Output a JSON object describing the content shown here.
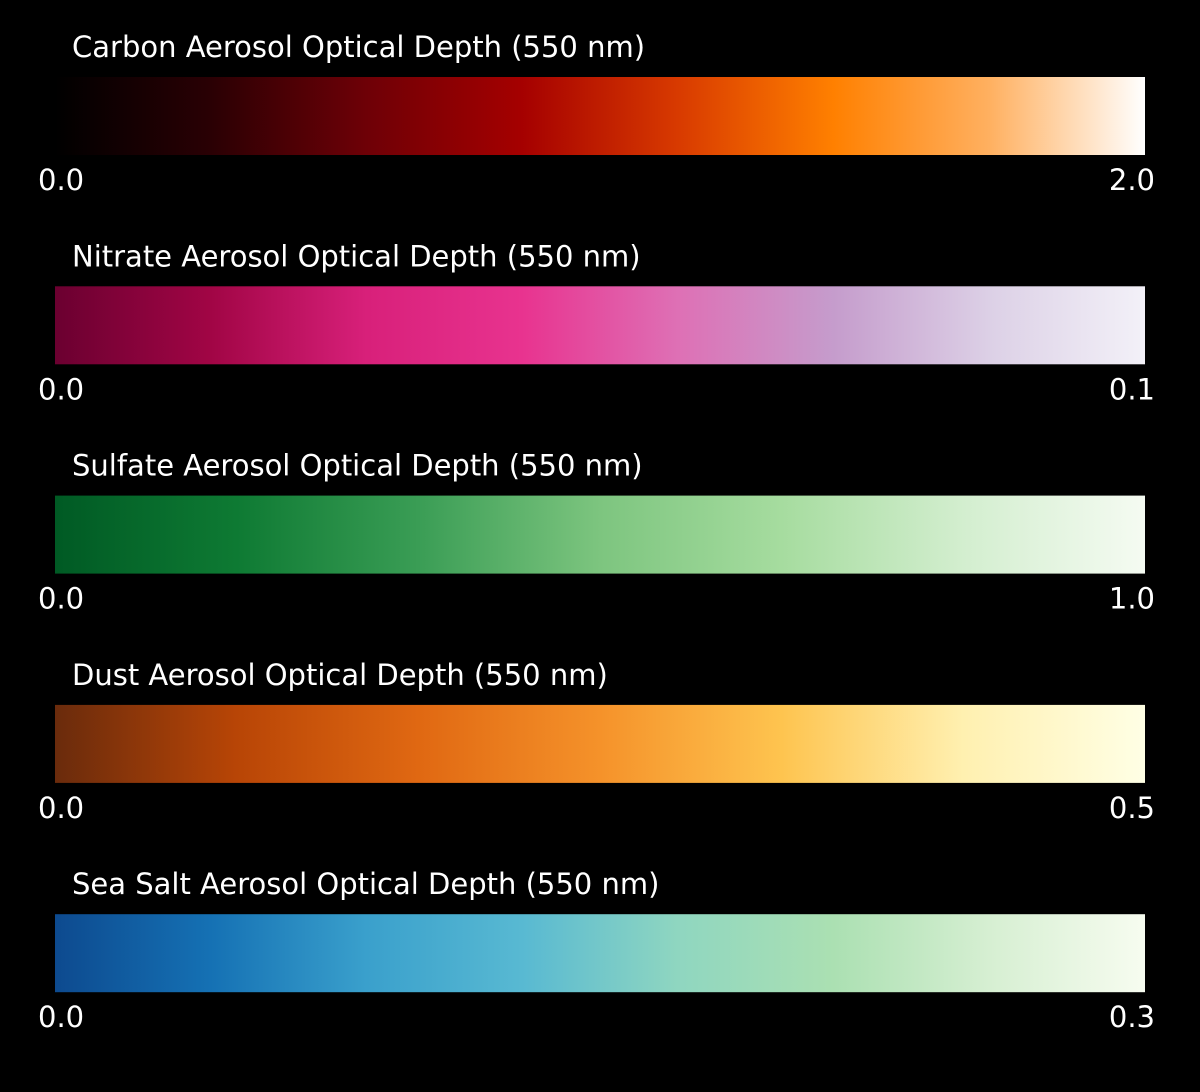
{
  "chart_data": [
    {
      "type": "colorbar",
      "title": "Carbon Aerosol Optical Depth (550 nm)",
      "xlim": [
        0,
        2
      ],
      "xticks": [
        {
          "value": 0,
          "label": "0.0"
        },
        {
          "value": 2,
          "label": "2.0"
        }
      ],
      "colors": [
        "#000000",
        "#2a0004",
        "#6e0006",
        "#a50000",
        "#d83a00",
        "#ff8000",
        "#ffb060",
        "#ffffff"
      ]
    },
    {
      "type": "colorbar",
      "title": "Nitrate Aerosol Optical Depth (550 nm)",
      "xlim": [
        0,
        0.1
      ],
      "xticks": [
        {
          "value": 0,
          "label": "0.0"
        },
        0.1
      ],
      "colors": [
        "#6b0030",
        "#a10545",
        "#d8207a",
        "#e8338f",
        "#de70b5",
        "#c59ccc",
        "#dcd0e6",
        "#f3f1f8"
      ]
    },
    {
      "type": "colorbar",
      "title": "Sulfate Aerosol Optical Depth (550 nm)",
      "xlim": [
        0,
        1
      ],
      "xticks": [
        {
          "value": 0,
          "label": "0.0"
        },
        {
          "value": 1,
          "label": "1.0"
        }
      ],
      "colors": [
        "#005a24",
        "#0e7a33",
        "#3a9d55",
        "#7dc57f",
        "#a6dc9f",
        "#d3eecf",
        "#f5fbf2"
      ]
    },
    {
      "type": "colorbar",
      "title": "Dust Aerosol Optical Depth (550 nm)",
      "xlim": [
        0,
        0.5
      ],
      "xticks": [
        {
          "value": 0,
          "label": "0.0"
        },
        0.5
      ],
      "colors": [
        "#6a2b0c",
        "#b84506",
        "#e06812",
        "#f5922a",
        "#fec44f",
        "#fff0b0",
        "#ffffe5"
      ]
    },
    {
      "type": "colorbar",
      "title": "Sea Salt Aerosol Optical Depth (550 nm)",
      "xlim": [
        0,
        0.3
      ],
      "xticks": [
        {
          "value": 0,
          "label": "0.0"
        },
        0.3
      ],
      "colors": [
        "#0d4a8f",
        "#1571b4",
        "#3aa0cc",
        "#58b9d2",
        "#8fd6c0",
        "#abe0b2",
        "#d6efd2",
        "#f7fcf0"
      ]
    }
  ]
}
